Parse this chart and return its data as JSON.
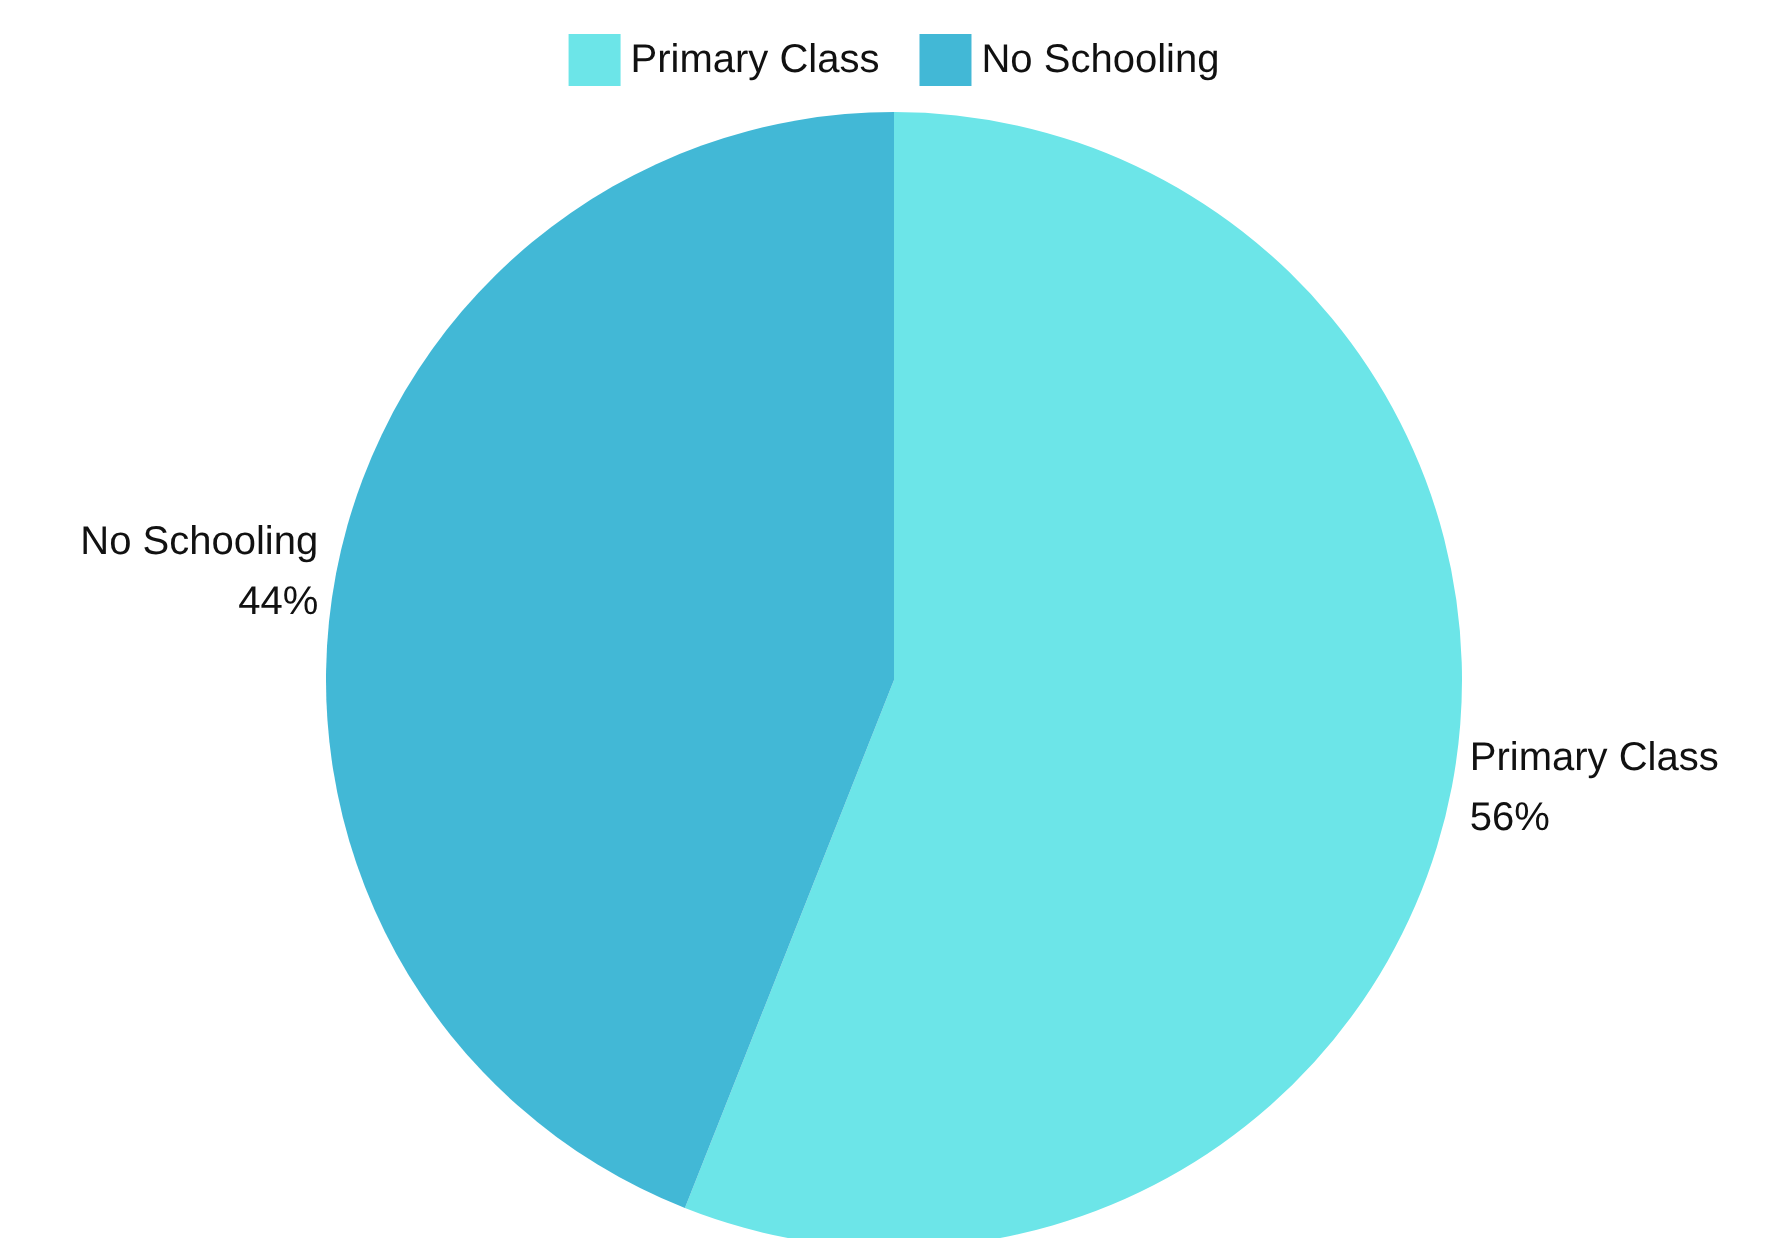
{
  "chart_data": {
    "type": "pie",
    "categories": [
      "Primary Class",
      "No Schooling"
    ],
    "values": [
      56,
      44
    ],
    "colors": [
      "#6ce5e8",
      "#42b8d6"
    ],
    "value_labels": [
      "56%",
      "44%"
    ],
    "legend": "top"
  }
}
